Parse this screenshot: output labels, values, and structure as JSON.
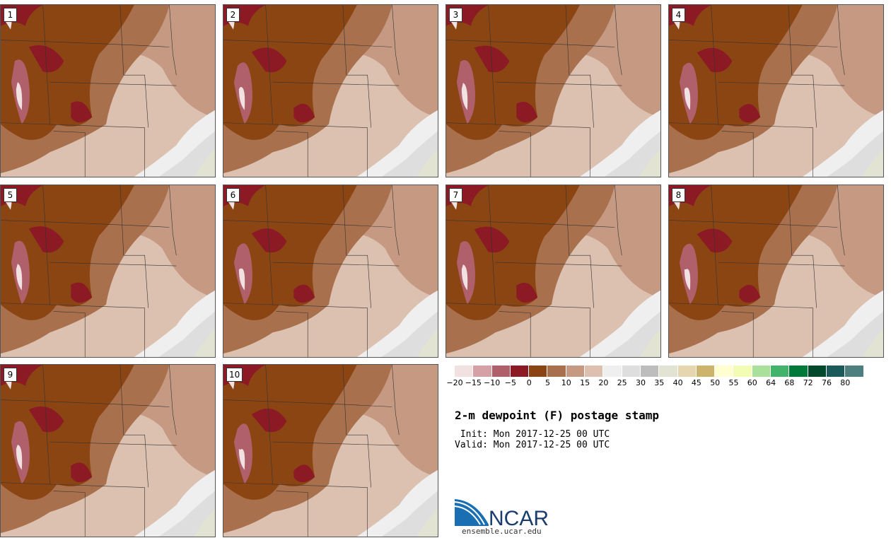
{
  "title": "2-m dewpoint (F) postage stamp",
  "init": " Init: Mon 2017-12-25 00 UTC",
  "valid": "Valid: Mon 2017-12-25 00 UTC",
  "panels": [
    {
      "label": "1"
    },
    {
      "label": "2"
    },
    {
      "label": "3"
    },
    {
      "label": "4"
    },
    {
      "label": "5"
    },
    {
      "label": "6"
    },
    {
      "label": "7"
    },
    {
      "label": "8"
    },
    {
      "label": "9"
    },
    {
      "label": "10"
    }
  ],
  "colorbar": {
    "colors": [
      "#f2e1e1",
      "#d5a0a6",
      "#b0606a",
      "#8b1a24",
      "#8b4513",
      "#a8704c",
      "#c69a82",
      "#ddc0b0",
      "#efefef",
      "#dedede",
      "#bdbdbd",
      "#e3e3d3",
      "#e6d6b0",
      "#cdb46c",
      "#fefed0",
      "#f3fcb3",
      "#a9e09c",
      "#42b36a",
      "#007a3a",
      "#00492c",
      "#1a5a5a",
      "#4d7f7f"
    ],
    "ticks": [
      "−20",
      "−15",
      "−10",
      "−5",
      "0",
      "5",
      "10",
      "15",
      "20",
      "25",
      "30",
      "35",
      "40",
      "45",
      "50",
      "55",
      "60",
      "64",
      "68",
      "72",
      "76",
      "80"
    ]
  },
  "logo": {
    "text": "NCAR",
    "url": "ensemble.ucar.edu"
  }
}
